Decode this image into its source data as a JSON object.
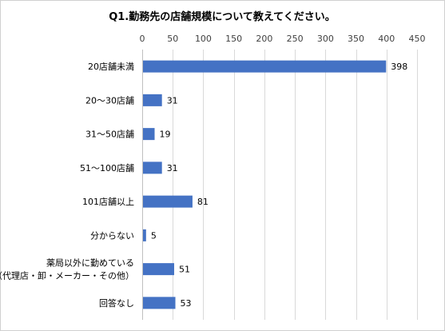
{
  "chart_data": {
    "type": "bar",
    "orientation": "horizontal",
    "title": "Q1.勤務先の店舗規模について教えてください。",
    "categories": [
      [
        "20店舗未満"
      ],
      [
        "20～30店舗"
      ],
      [
        "31～50店舗"
      ],
      [
        "51～100店舗"
      ],
      [
        "101店舗以上"
      ],
      [
        "分からない"
      ],
      [
        "薬局以外に勤めている",
        "（代理店・卸・メーカー・その他）"
      ],
      [
        "回答なし"
      ]
    ],
    "values": [
      398,
      31,
      19,
      31,
      81,
      5,
      51,
      53
    ],
    "xlim": [
      0,
      450
    ],
    "xticks": [
      "0",
      "50",
      "100",
      "150",
      "200",
      "250",
      "300",
      "350",
      "400",
      "450"
    ],
    "xtick_values": [
      0,
      50,
      100,
      150,
      200,
      250,
      300,
      350,
      400,
      450
    ],
    "x_axis_position": "top",
    "grid": true,
    "legend": "none",
    "bar_color": "#4472c4"
  }
}
